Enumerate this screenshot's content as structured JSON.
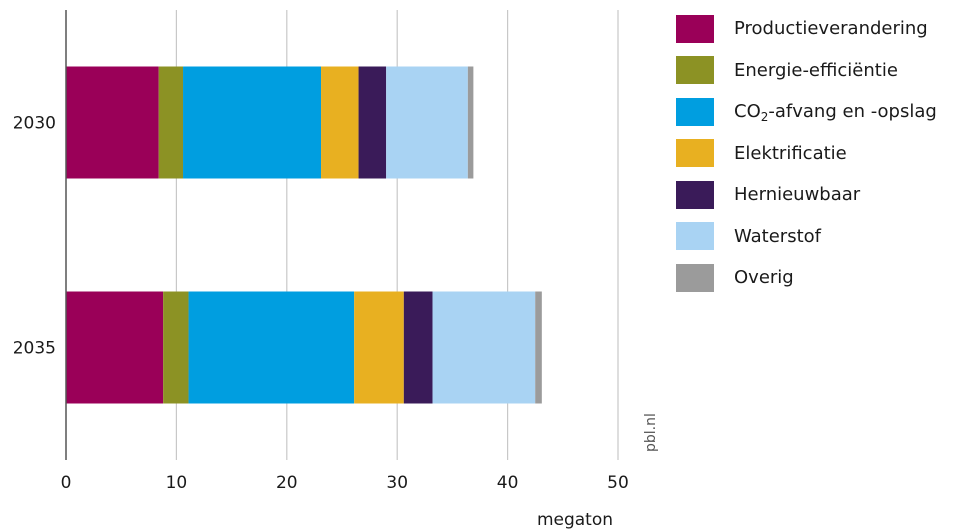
{
  "chart_data": {
    "type": "bar",
    "orientation": "horizontal",
    "stacked": true,
    "categories": [
      "2030",
      "2035"
    ],
    "series": [
      {
        "name": "Productieverandering",
        "color": "#9a0058",
        "values": [
          8.4,
          8.8
        ]
      },
      {
        "name": "Energie-efficiëntie",
        "color": "#8c9224",
        "values": [
          2.2,
          2.3
        ]
      },
      {
        "name": "CO₂-afvang en -opslag",
        "color": "#009ee0",
        "values": [
          12.5,
          15.0
        ]
      },
      {
        "name": "Elektrificatie",
        "color": "#e8b021",
        "values": [
          3.4,
          4.5
        ]
      },
      {
        "name": "Hernieuwbaar",
        "color": "#3a1b59",
        "values": [
          2.5,
          2.6
        ]
      },
      {
        "name": "Waterstof",
        "color": "#a9d3f3",
        "values": [
          7.4,
          9.3
        ]
      },
      {
        "name": "Overig",
        "color": "#9b9b9b",
        "values": [
          0.5,
          0.6
        ]
      }
    ],
    "xlabel": "megaton",
    "xlim": [
      0,
      50
    ],
    "xticks": [
      0,
      10,
      20,
      30,
      40,
      50
    ],
    "grid": true,
    "legend_position": "right",
    "credit": "pbl.nl"
  }
}
